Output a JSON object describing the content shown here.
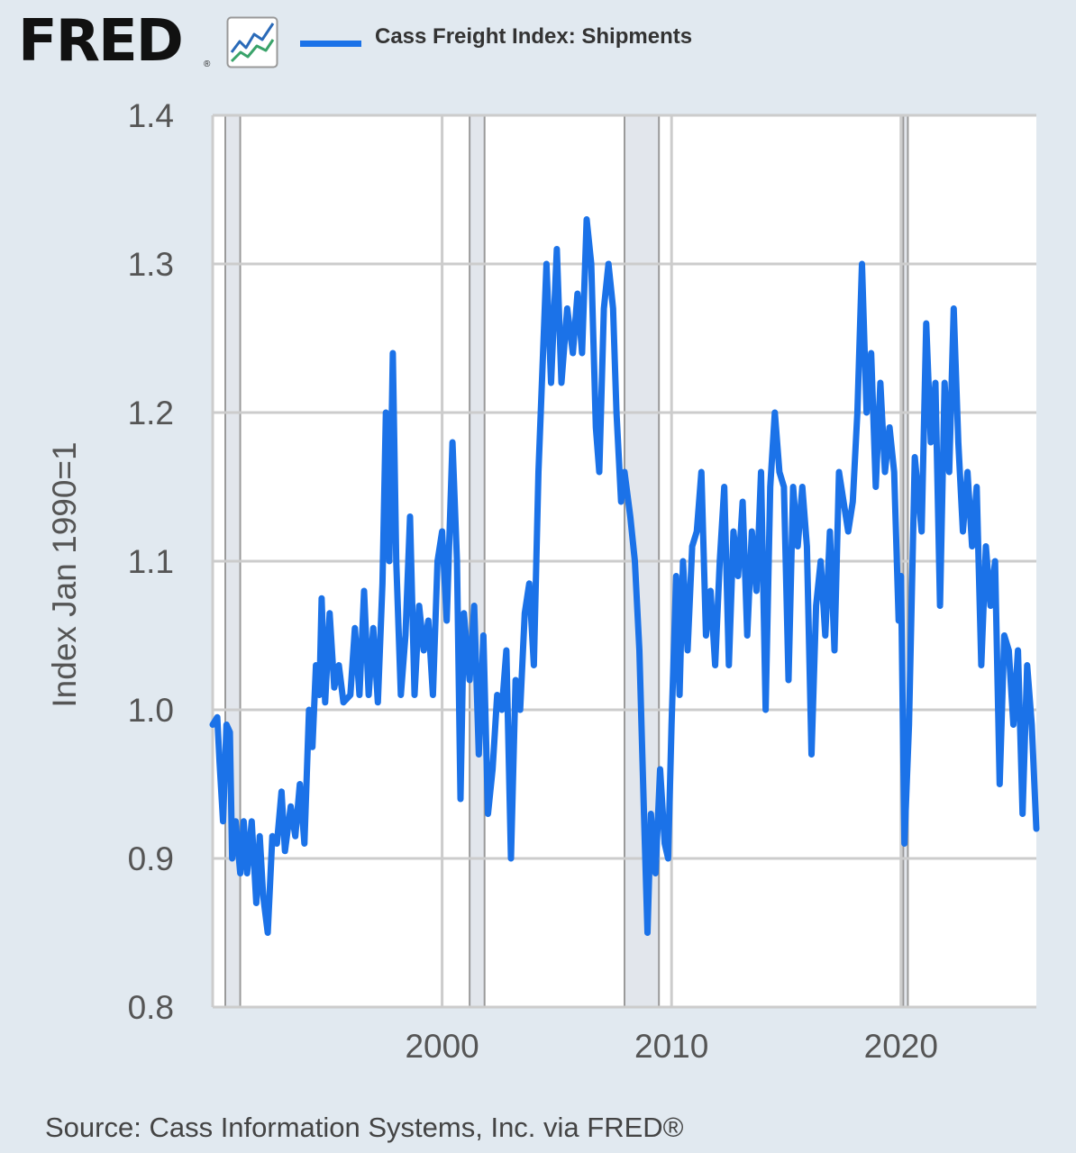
{
  "header": {
    "logo_text": "FRED",
    "logo_icon": "line-chart-icon",
    "legend_label": "Cass Freight Index: Shipments",
    "series_color": "#1b72e8"
  },
  "footer": {
    "source": "Source: Cass Information Systems, Inc. via FRED®"
  },
  "chart_data": {
    "type": "line",
    "title": "",
    "xlabel": "",
    "ylabel": "Index Jan 1990=1",
    "ylim": [
      0.8,
      1.4
    ],
    "y_ticks": [
      0.8,
      0.9,
      1.0,
      1.1,
      1.2,
      1.3,
      1.4
    ],
    "y_tick_labels": [
      "0.8",
      "0.9",
      "1.0",
      "1.1",
      "1.2",
      "1.3",
      "1.4"
    ],
    "x_ticks": [
      2000,
      2010,
      2020
    ],
    "x_tick_labels": [
      "2000",
      "2010",
      "2020"
    ],
    "xlim": [
      1990.0,
      2025.9
    ],
    "grid": true,
    "legend_position": "top",
    "recessions": [
      [
        1990.55,
        1991.2
      ],
      [
        2001.2,
        2001.85
      ],
      [
        2007.95,
        2009.45
      ],
      [
        2020.1,
        2020.3
      ]
    ],
    "series": [
      {
        "name": "Cass Freight Index: Shipments",
        "color": "#1b72e8",
        "points": [
          [
            1990.0,
            0.99
          ],
          [
            1990.2,
            0.995
          ],
          [
            1990.3,
            0.965
          ],
          [
            1990.45,
            0.925
          ],
          [
            1990.6,
            0.99
          ],
          [
            1990.75,
            0.985
          ],
          [
            1990.85,
            0.9
          ],
          [
            1991.0,
            0.925
          ],
          [
            1991.2,
            0.89
          ],
          [
            1991.35,
            0.925
          ],
          [
            1991.5,
            0.89
          ],
          [
            1991.7,
            0.925
          ],
          [
            1991.9,
            0.87
          ],
          [
            1992.05,
            0.915
          ],
          [
            1992.2,
            0.875
          ],
          [
            1992.4,
            0.85
          ],
          [
            1992.6,
            0.915
          ],
          [
            1992.8,
            0.91
          ],
          [
            1993.0,
            0.945
          ],
          [
            1993.15,
            0.905
          ],
          [
            1993.4,
            0.935
          ],
          [
            1993.6,
            0.915
          ],
          [
            1993.8,
            0.95
          ],
          [
            1994.0,
            0.91
          ],
          [
            1994.2,
            1.0
          ],
          [
            1994.35,
            0.975
          ],
          [
            1994.5,
            1.03
          ],
          [
            1994.65,
            1.01
          ],
          [
            1994.75,
            1.075
          ],
          [
            1994.9,
            1.005
          ],
          [
            1995.1,
            1.065
          ],
          [
            1995.3,
            1.015
          ],
          [
            1995.5,
            1.03
          ],
          [
            1995.7,
            1.005
          ],
          [
            1996.0,
            1.01
          ],
          [
            1996.2,
            1.055
          ],
          [
            1996.4,
            1.01
          ],
          [
            1996.6,
            1.08
          ],
          [
            1996.8,
            1.01
          ],
          [
            1997.0,
            1.055
          ],
          [
            1997.2,
            1.005
          ],
          [
            1997.4,
            1.085
          ],
          [
            1997.55,
            1.2
          ],
          [
            1997.7,
            1.1
          ],
          [
            1997.85,
            1.24
          ],
          [
            1998.0,
            1.1
          ],
          [
            1998.2,
            1.01
          ],
          [
            1998.4,
            1.05
          ],
          [
            1998.6,
            1.13
          ],
          [
            1998.8,
            1.01
          ],
          [
            1999.0,
            1.07
          ],
          [
            1999.2,
            1.04
          ],
          [
            1999.4,
            1.06
          ],
          [
            1999.6,
            1.01
          ],
          [
            1999.8,
            1.1
          ],
          [
            2000.0,
            1.12
          ],
          [
            2000.2,
            1.06
          ],
          [
            2000.45,
            1.18
          ],
          [
            2000.65,
            1.1
          ],
          [
            2000.8,
            0.94
          ],
          [
            2000.95,
            1.065
          ],
          [
            2001.2,
            1.02
          ],
          [
            2001.4,
            1.07
          ],
          [
            2001.6,
            0.97
          ],
          [
            2001.8,
            1.05
          ],
          [
            2002.0,
            0.93
          ],
          [
            2002.2,
            0.96
          ],
          [
            2002.4,
            1.01
          ],
          [
            2002.6,
            1.0
          ],
          [
            2002.8,
            1.04
          ],
          [
            2003.0,
            0.9
          ],
          [
            2003.2,
            1.02
          ],
          [
            2003.4,
            1.0
          ],
          [
            2003.6,
            1.065
          ],
          [
            2003.8,
            1.085
          ],
          [
            2004.0,
            1.03
          ],
          [
            2004.2,
            1.16
          ],
          [
            2004.4,
            1.24
          ],
          [
            2004.55,
            1.3
          ],
          [
            2004.75,
            1.22
          ],
          [
            2005.0,
            1.31
          ],
          [
            2005.2,
            1.22
          ],
          [
            2005.45,
            1.27
          ],
          [
            2005.7,
            1.24
          ],
          [
            2005.9,
            1.28
          ],
          [
            2006.1,
            1.24
          ],
          [
            2006.3,
            1.33
          ],
          [
            2006.5,
            1.3
          ],
          [
            2006.7,
            1.19
          ],
          [
            2006.85,
            1.16
          ],
          [
            2007.05,
            1.27
          ],
          [
            2007.25,
            1.3
          ],
          [
            2007.45,
            1.27
          ],
          [
            2007.6,
            1.2
          ],
          [
            2007.8,
            1.14
          ],
          [
            2007.95,
            1.16
          ],
          [
            2008.2,
            1.13
          ],
          [
            2008.4,
            1.1
          ],
          [
            2008.6,
            1.04
          ],
          [
            2008.8,
            0.93
          ],
          [
            2008.95,
            0.85
          ],
          [
            2009.1,
            0.93
          ],
          [
            2009.3,
            0.89
          ],
          [
            2009.5,
            0.96
          ],
          [
            2009.7,
            0.91
          ],
          [
            2009.85,
            0.9
          ],
          [
            2010.0,
            0.99
          ],
          [
            2010.2,
            1.09
          ],
          [
            2010.35,
            1.01
          ],
          [
            2010.5,
            1.1
          ],
          [
            2010.7,
            1.04
          ],
          [
            2010.9,
            1.11
          ],
          [
            2011.1,
            1.12
          ],
          [
            2011.3,
            1.16
          ],
          [
            2011.5,
            1.05
          ],
          [
            2011.7,
            1.08
          ],
          [
            2011.9,
            1.03
          ],
          [
            2012.1,
            1.1
          ],
          [
            2012.3,
            1.15
          ],
          [
            2012.5,
            1.03
          ],
          [
            2012.7,
            1.12
          ],
          [
            2012.9,
            1.09
          ],
          [
            2013.1,
            1.14
          ],
          [
            2013.3,
            1.05
          ],
          [
            2013.5,
            1.12
          ],
          [
            2013.7,
            1.08
          ],
          [
            2013.9,
            1.16
          ],
          [
            2014.1,
            1.0
          ],
          [
            2014.3,
            1.15
          ],
          [
            2014.5,
            1.2
          ],
          [
            2014.7,
            1.16
          ],
          [
            2014.9,
            1.15
          ],
          [
            2015.1,
            1.02
          ],
          [
            2015.3,
            1.15
          ],
          [
            2015.5,
            1.11
          ],
          [
            2015.7,
            1.15
          ],
          [
            2015.9,
            1.11
          ],
          [
            2016.1,
            0.97
          ],
          [
            2016.3,
            1.07
          ],
          [
            2016.5,
            1.1
          ],
          [
            2016.7,
            1.05
          ],
          [
            2016.9,
            1.12
          ],
          [
            2017.1,
            1.04
          ],
          [
            2017.3,
            1.16
          ],
          [
            2017.5,
            1.14
          ],
          [
            2017.7,
            1.12
          ],
          [
            2017.9,
            1.14
          ],
          [
            2018.1,
            1.2
          ],
          [
            2018.3,
            1.3
          ],
          [
            2018.5,
            1.2
          ],
          [
            2018.7,
            1.24
          ],
          [
            2018.9,
            1.15
          ],
          [
            2019.1,
            1.22
          ],
          [
            2019.3,
            1.16
          ],
          [
            2019.5,
            1.19
          ],
          [
            2019.7,
            1.16
          ],
          [
            2019.9,
            1.06
          ],
          [
            2020.0,
            1.09
          ],
          [
            2020.15,
            0.91
          ],
          [
            2020.35,
            0.99
          ],
          [
            2020.6,
            1.17
          ],
          [
            2020.9,
            1.12
          ],
          [
            2021.1,
            1.26
          ],
          [
            2021.3,
            1.18
          ],
          [
            2021.5,
            1.22
          ],
          [
            2021.7,
            1.07
          ],
          [
            2021.9,
            1.22
          ],
          [
            2022.1,
            1.16
          ],
          [
            2022.3,
            1.27
          ],
          [
            2022.5,
            1.18
          ],
          [
            2022.7,
            1.12
          ],
          [
            2022.9,
            1.16
          ],
          [
            2023.1,
            1.11
          ],
          [
            2023.3,
            1.15
          ],
          [
            2023.5,
            1.03
          ],
          [
            2023.7,
            1.11
          ],
          [
            2023.9,
            1.07
          ],
          [
            2024.1,
            1.1
          ],
          [
            2024.3,
            0.95
          ],
          [
            2024.5,
            1.05
          ],
          [
            2024.7,
            1.04
          ],
          [
            2024.9,
            0.99
          ],
          [
            2025.1,
            1.04
          ],
          [
            2025.3,
            0.93
          ],
          [
            2025.5,
            1.03
          ],
          [
            2025.7,
            0.99
          ],
          [
            2025.9,
            0.92
          ]
        ]
      }
    ]
  }
}
